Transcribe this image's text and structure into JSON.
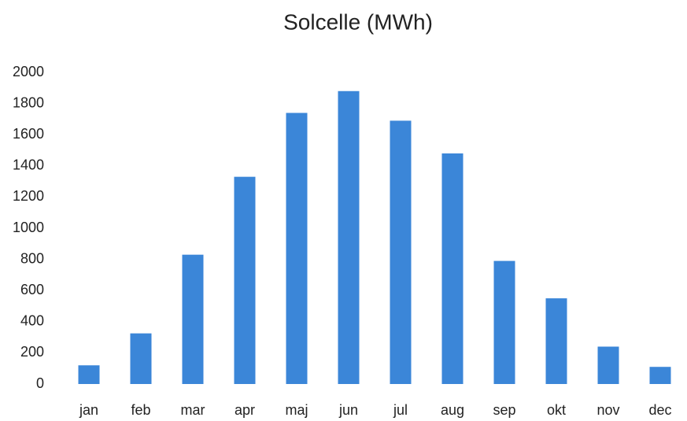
{
  "chart_data": {
    "type": "bar",
    "title": "Solcelle (MWh)",
    "categories": [
      "jan",
      "feb",
      "mar",
      "apr",
      "maj",
      "jun",
      "jul",
      "aug",
      "sep",
      "okt",
      "nov",
      "dec"
    ],
    "values": [
      120,
      325,
      830,
      1330,
      1740,
      1880,
      1690,
      1480,
      790,
      550,
      240,
      110
    ],
    "color": "#3b86d8",
    "ylim": [
      0,
      2000
    ],
    "yticks": [
      0,
      200,
      400,
      600,
      800,
      1000,
      1200,
      1400,
      1600,
      1800,
      2000
    ],
    "grid": false
  }
}
